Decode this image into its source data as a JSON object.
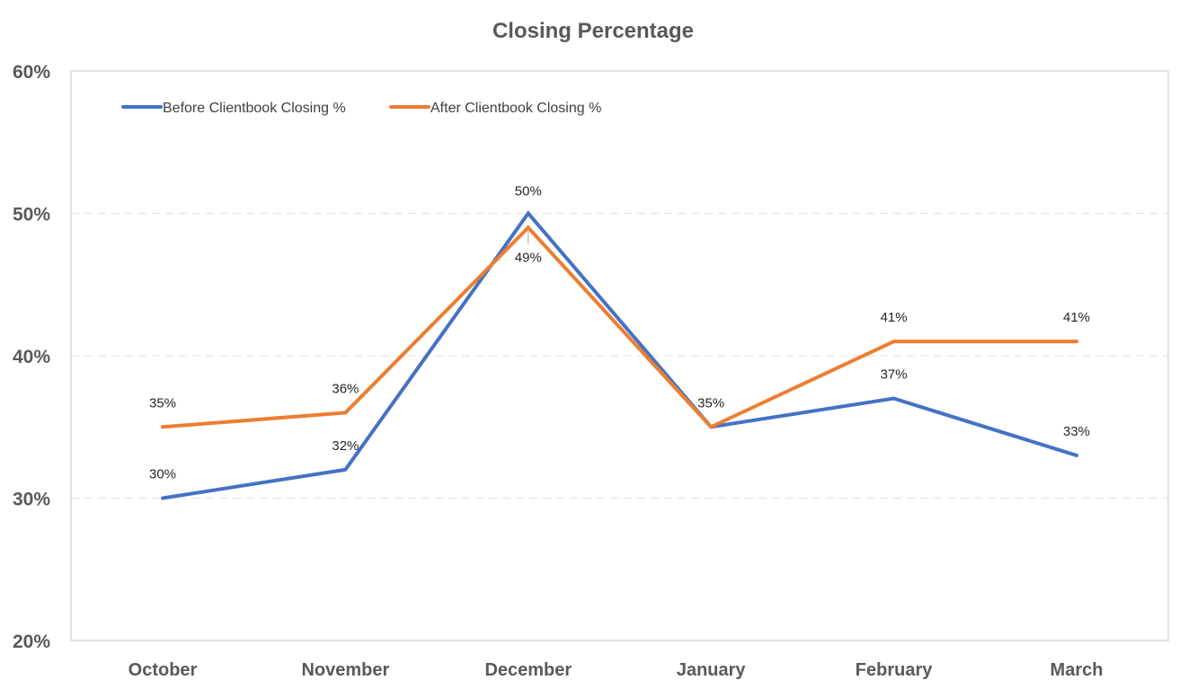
{
  "chart_data": {
    "type": "line",
    "title": "Closing Percentage",
    "categories": [
      "October",
      "November",
      "December",
      "January",
      "February",
      "March"
    ],
    "series": [
      {
        "name": "Before Clientbook Closing %",
        "color": "#4472C4",
        "values": [
          30,
          32,
          50,
          35,
          37,
          33
        ],
        "labels": [
          "30%",
          "32%",
          "50%",
          "35%",
          "37%",
          "33%"
        ]
      },
      {
        "name": "After Clientbook Closing %",
        "color": "#ED7D31",
        "values": [
          35,
          36,
          49,
          35,
          41,
          41
        ],
        "labels": [
          "35%",
          "36%",
          "49%",
          "35%",
          "41%",
          "41%"
        ]
      }
    ],
    "ylim": [
      20,
      60
    ],
    "yticks": [
      20,
      30,
      40,
      50,
      60
    ],
    "ytick_labels": [
      "20%",
      "30%",
      "40%",
      "50%",
      "60%"
    ],
    "gridlines": true,
    "legend_position": "top-left"
  }
}
